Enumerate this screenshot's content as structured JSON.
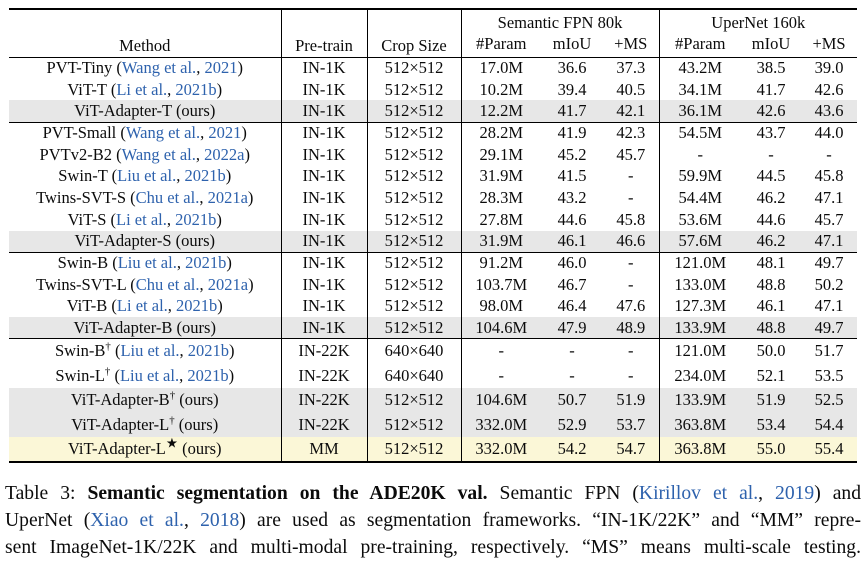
{
  "colors": {
    "link": "#2e62ad",
    "row_highlight_gray": "#e7e7e7",
    "row_highlight_yellow": "#fbf7d7"
  },
  "table": {
    "columns": {
      "method": "Method",
      "pretrain": "Pre-train",
      "crop": "Crop Size",
      "fpn_group": "Semantic FPN 80k",
      "uper_group": "UperNet 160k",
      "subcols": [
        "#Param",
        "mIoU",
        "+MS"
      ]
    },
    "groups": [
      {
        "rows": [
          {
            "name": "PVT-Tiny",
            "sup": "",
            "cite": "Wang et al.",
            "year": "2021",
            "ours": false,
            "pretrain": "IN-1K",
            "crop": "512×512",
            "cells": [
              "17.0M",
              "36.6",
              "37.3",
              "43.2M",
              "38.5",
              "39.0"
            ],
            "bg": ""
          },
          {
            "name": "ViT-T",
            "sup": "",
            "cite": "Li et al.",
            "year": "2021b",
            "ours": false,
            "pretrain": "IN-1K",
            "crop": "512×512",
            "cells": [
              "10.2M",
              "39.4",
              "40.5",
              "34.1M",
              "41.7",
              "42.6"
            ],
            "bg": ""
          },
          {
            "name": "ViT-Adapter-T",
            "sup": "",
            "cite": "",
            "year": "",
            "ours": true,
            "pretrain": "IN-1K",
            "crop": "512×512",
            "cells": [
              "12.2M",
              "41.7",
              "42.1",
              "36.1M",
              "42.6",
              "43.6"
            ],
            "bg": "gray"
          }
        ]
      },
      {
        "rows": [
          {
            "name": "PVT-Small",
            "sup": "",
            "cite": "Wang et al.",
            "year": "2021",
            "ours": false,
            "pretrain": "IN-1K",
            "crop": "512×512",
            "cells": [
              "28.2M",
              "41.9",
              "42.3",
              "54.5M",
              "43.7",
              "44.0"
            ],
            "bg": ""
          },
          {
            "name": "PVTv2-B2",
            "sup": "",
            "cite": "Wang et al.",
            "year": "2022a",
            "ours": false,
            "pretrain": "IN-1K",
            "crop": "512×512",
            "cells": [
              "29.1M",
              "45.2",
              "45.7",
              "-",
              "-",
              "-"
            ],
            "bg": ""
          },
          {
            "name": "Swin-T",
            "sup": "",
            "cite": "Liu et al.",
            "year": "2021b",
            "ours": false,
            "pretrain": "IN-1K",
            "crop": "512×512",
            "cells": [
              "31.9M",
              "41.5",
              "-",
              "59.9M",
              "44.5",
              "45.8"
            ],
            "bg": ""
          },
          {
            "name": "Twins-SVT-S",
            "sup": "",
            "cite": "Chu et al.",
            "year": "2021a",
            "ours": false,
            "pretrain": "IN-1K",
            "crop": "512×512",
            "cells": [
              "28.3M",
              "43.2",
              "-",
              "54.4M",
              "46.2",
              "47.1"
            ],
            "bg": ""
          },
          {
            "name": "ViT-S",
            "sup": "",
            "cite": "Li et al.",
            "year": "2021b",
            "ours": false,
            "pretrain": "IN-1K",
            "crop": "512×512",
            "cells": [
              "27.8M",
              "44.6",
              "45.8",
              "53.6M",
              "44.6",
              "45.7"
            ],
            "bg": ""
          },
          {
            "name": "ViT-Adapter-S",
            "sup": "",
            "cite": "",
            "year": "",
            "ours": true,
            "pretrain": "IN-1K",
            "crop": "512×512",
            "cells": [
              "31.9M",
              "46.1",
              "46.6",
              "57.6M",
              "46.2",
              "47.1"
            ],
            "bg": "gray"
          }
        ]
      },
      {
        "rows": [
          {
            "name": "Swin-B",
            "sup": "",
            "cite": "Liu et al.",
            "year": "2021b",
            "ours": false,
            "pretrain": "IN-1K",
            "crop": "512×512",
            "cells": [
              "91.2M",
              "46.0",
              "-",
              "121.0M",
              "48.1",
              "49.7"
            ],
            "bg": ""
          },
          {
            "name": "Twins-SVT-L",
            "sup": "",
            "cite": "Chu et al.",
            "year": "2021a",
            "ours": false,
            "pretrain": "IN-1K",
            "crop": "512×512",
            "cells": [
              "103.7M",
              "46.7",
              "-",
              "133.0M",
              "48.8",
              "50.2"
            ],
            "bg": ""
          },
          {
            "name": "ViT-B",
            "sup": "",
            "cite": "Li et al.",
            "year": "2021b",
            "ours": false,
            "pretrain": "IN-1K",
            "crop": "512×512",
            "cells": [
              "98.0M",
              "46.4",
              "47.6",
              "127.3M",
              "46.1",
              "47.1"
            ],
            "bg": ""
          },
          {
            "name": "ViT-Adapter-B",
            "sup": "",
            "cite": "",
            "year": "",
            "ours": true,
            "pretrain": "IN-1K",
            "crop": "512×512",
            "cells": [
              "104.6M",
              "47.9",
              "48.9",
              "133.9M",
              "48.8",
              "49.7"
            ],
            "bg": "gray"
          }
        ]
      },
      {
        "rows": [
          {
            "name": "Swin-B",
            "sup": "†",
            "cite": "Liu et al.",
            "year": "2021b",
            "ours": false,
            "pretrain": "IN-22K",
            "crop": "640×640",
            "cells": [
              "-",
              "-",
              "-",
              "121.0M",
              "50.0",
              "51.7"
            ],
            "bg": ""
          },
          {
            "name": "Swin-L",
            "sup": "†",
            "cite": "Liu et al.",
            "year": "2021b",
            "ours": false,
            "pretrain": "IN-22K",
            "crop": "640×640",
            "cells": [
              "-",
              "-",
              "-",
              "234.0M",
              "52.1",
              "53.5"
            ],
            "bg": ""
          },
          {
            "name": "ViT-Adapter-B",
            "sup": "†",
            "cite": "",
            "year": "",
            "ours": true,
            "pretrain": "IN-22K",
            "crop": "512×512",
            "cells": [
              "104.6M",
              "50.7",
              "51.9",
              "133.9M",
              "51.9",
              "52.5"
            ],
            "bg": "gray"
          },
          {
            "name": "ViT-Adapter-L",
            "sup": "†",
            "cite": "",
            "year": "",
            "ours": true,
            "pretrain": "IN-22K",
            "crop": "512×512",
            "cells": [
              "332.0M",
              "52.9",
              "53.7",
              "363.8M",
              "53.4",
              "54.4"
            ],
            "bg": "gray"
          },
          {
            "name": "ViT-Adapter-L",
            "sup": "★",
            "cite": "",
            "year": "",
            "ours": true,
            "pretrain": "MM",
            "crop": "512×512",
            "cells": [
              "332.0M",
              "54.2",
              "54.7",
              "363.8M",
              "55.0",
              "55.4"
            ],
            "bg": "yellow"
          }
        ]
      }
    ]
  },
  "caption": {
    "lines": [
      [
        {
          "t": "Table 3: ",
          "s": "normal"
        },
        {
          "t": "Semantic segmentation on the ADE20K val.",
          "s": "bold"
        },
        {
          "t": "  Semantic FPN (",
          "s": "normal"
        },
        {
          "t": "Kirillov et al.",
          "s": "link"
        },
        {
          "t": ", ",
          "s": "normal"
        },
        {
          "t": "2019",
          "s": "link"
        },
        {
          "t": ") and",
          "s": "normal"
        }
      ],
      [
        {
          "t": "UperNet (",
          "s": "normal"
        },
        {
          "t": "Xiao et al.",
          "s": "link"
        },
        {
          "t": ", ",
          "s": "normal"
        },
        {
          "t": "2018",
          "s": "link"
        },
        {
          "t": ") are used as segmentation frameworks. “IN-1K/22K” and “MM” repre-",
          "s": "normal"
        }
      ],
      [
        {
          "t": "sent ImageNet-1K/22K and multi-modal pre-training, respectively. “MS” means multi-scale testing.",
          "s": "normal"
        }
      ]
    ]
  }
}
